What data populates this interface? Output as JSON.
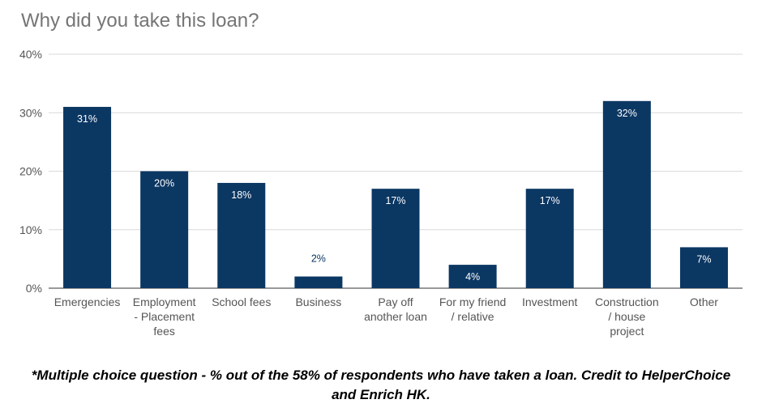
{
  "chart_data": {
    "type": "bar",
    "title": "Why did you take this loan?",
    "xlabel": "",
    "ylabel": "",
    "ylim": [
      0,
      40
    ],
    "yticks": [
      "0%",
      "10%",
      "20%",
      "30%",
      "40%"
    ],
    "categories": [
      [
        "Emergencies"
      ],
      [
        "Employment",
        "- Placement",
        "fees"
      ],
      [
        "School fees"
      ],
      [
        "Business"
      ],
      [
        "Pay off",
        "another loan"
      ],
      [
        "For my friend",
        "/ relative"
      ],
      [
        "Investment"
      ],
      [
        "Construction",
        "/ house",
        "project"
      ],
      [
        "Other"
      ]
    ],
    "values": [
      31,
      20,
      18,
      2,
      17,
      4,
      17,
      32,
      7
    ],
    "data_labels": [
      "31%",
      "20%",
      "18%",
      "2%",
      "17%",
      "4%",
      "17%",
      "32%",
      "7%"
    ],
    "bar_color": "#0b3763",
    "gridlines": true,
    "legend": "none"
  },
  "footnote": {
    "line1": "*Multiple choice question - % out of the 58% of respondents who have taken a loan. Credit to HelperChoice",
    "line2": "and Enrich HK."
  }
}
